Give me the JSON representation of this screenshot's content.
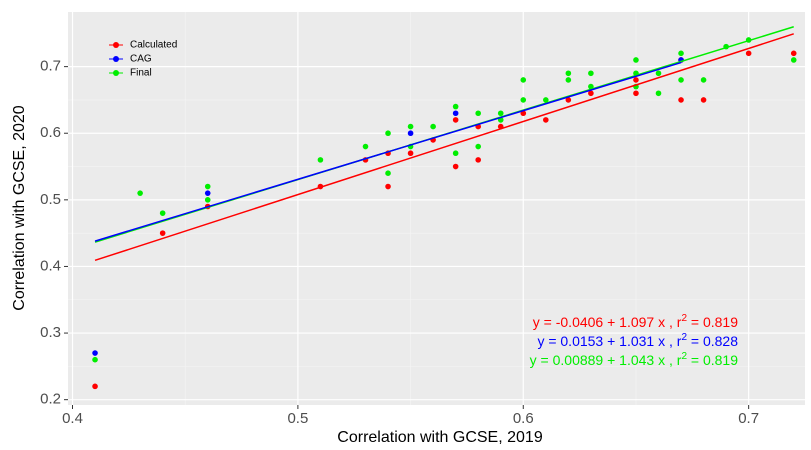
{
  "chart_data": {
    "type": "scatter",
    "xlabel": "Correlation with GCSE, 2019",
    "ylabel": "Correlation with GCSE, 2020",
    "xlim": [
      0.398,
      0.725
    ],
    "ylim": [
      0.192,
      0.782
    ],
    "xticks": [
      0.4,
      0.5,
      0.6,
      0.7
    ],
    "yticks": [
      0.2,
      0.3,
      0.4,
      0.5,
      0.6,
      0.7
    ],
    "grid": true,
    "legend": "top-left",
    "series": [
      {
        "name": "Calculated",
        "color": "#ff0000",
        "x": [
          0.41,
          0.44,
          0.46,
          0.51,
          0.53,
          0.54,
          0.54,
          0.55,
          0.56,
          0.57,
          0.57,
          0.58,
          0.58,
          0.59,
          0.6,
          0.61,
          0.62,
          0.63,
          0.65,
          0.65,
          0.67,
          0.67,
          0.68,
          0.7,
          0.72
        ],
        "values": [
          0.22,
          0.45,
          0.49,
          0.52,
          0.56,
          0.52,
          0.57,
          0.57,
          0.59,
          0.55,
          0.62,
          0.56,
          0.61,
          0.61,
          0.63,
          0.62,
          0.65,
          0.66,
          0.66,
          0.68,
          0.65,
          0.71,
          0.65,
          0.72,
          0.72
        ],
        "fit": {
          "intercept": -0.0406,
          "slope": 1.097
        },
        "equation": [
          "y = -0.0406 + 1.097 x , r",
          "2",
          " = 0.819"
        ]
      },
      {
        "name": "CAG",
        "color": "#0000ff",
        "x": [
          0.41,
          0.46,
          0.55,
          0.57,
          0.67
        ],
        "values": [
          0.27,
          0.51,
          0.6,
          0.63,
          0.71
        ],
        "fit": {
          "intercept": 0.0153,
          "slope": 1.031
        },
        "equation": [
          "y = 0.0153 + 1.031 x , r",
          "2",
          " = 0.828"
        ]
      },
      {
        "name": "Final",
        "color": "#00ee00",
        "x": [
          0.41,
          0.43,
          0.44,
          0.46,
          0.46,
          0.51,
          0.53,
          0.54,
          0.54,
          0.55,
          0.55,
          0.56,
          0.57,
          0.57,
          0.58,
          0.58,
          0.59,
          0.59,
          0.6,
          0.6,
          0.61,
          0.62,
          0.62,
          0.63,
          0.63,
          0.65,
          0.65,
          0.65,
          0.66,
          0.66,
          0.67,
          0.67,
          0.68,
          0.69,
          0.7,
          0.72
        ],
        "values": [
          0.26,
          0.51,
          0.48,
          0.5,
          0.52,
          0.56,
          0.58,
          0.54,
          0.6,
          0.58,
          0.61,
          0.61,
          0.57,
          0.64,
          0.58,
          0.63,
          0.62,
          0.63,
          0.65,
          0.68,
          0.65,
          0.68,
          0.69,
          0.67,
          0.69,
          0.67,
          0.69,
          0.71,
          0.66,
          0.69,
          0.68,
          0.72,
          0.68,
          0.73,
          0.74,
          0.71
        ],
        "fit": {
          "intercept": 0.00889,
          "slope": 1.043
        },
        "equation": [
          "y = 0.00889 + 1.043 x , r",
          "2",
          " = 0.819"
        ]
      }
    ]
  }
}
